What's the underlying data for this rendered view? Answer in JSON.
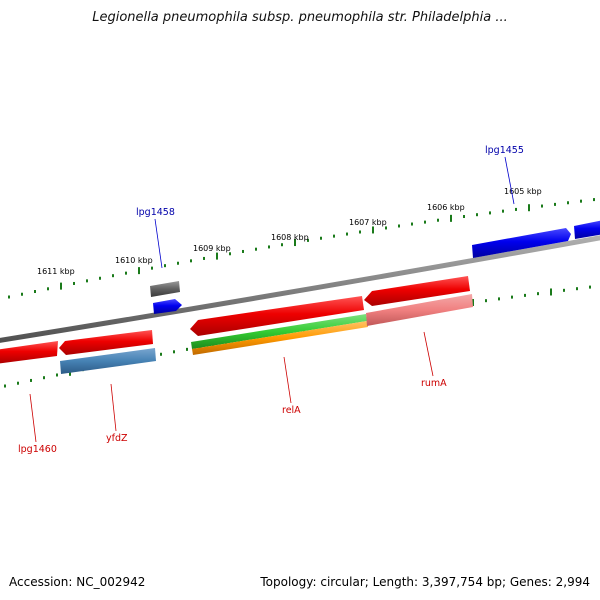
{
  "title": "Legionella pneumophila subsp. pneumophila str. Philadelphia ...",
  "footer": {
    "accession": "Accession: NC_002942",
    "summary": "Topology: circular; Length: 3,397,754 bp; Genes: 2,994"
  },
  "scale_labels": [
    "1611 kbp",
    "1610 kbp",
    "1609 kbp",
    "1608 kbp",
    "1607 kbp",
    "1606 kbp",
    "1605 kbp"
  ],
  "genes": {
    "lpg1455": "lpg1455",
    "lpg1458": "lpg1458",
    "lpg1460": "lpg1460",
    "yfdZ": "yfdZ",
    "relA": "relA",
    "rumA": "rumA"
  },
  "colors": {
    "backbone": "#808080",
    "scale_ticks": "#1a7a1a",
    "forward_gene": "#0000ee",
    "reverse_gene": "#ee0000",
    "pseudo_gene": "#606060",
    "steelblue_gene": "#4682b4",
    "green_feature": "#33cc33",
    "orange_feature": "#ff9900",
    "pink_feature": "#f08080",
    "label_blue": "#0000aa",
    "label_red": "#cc0000"
  }
}
